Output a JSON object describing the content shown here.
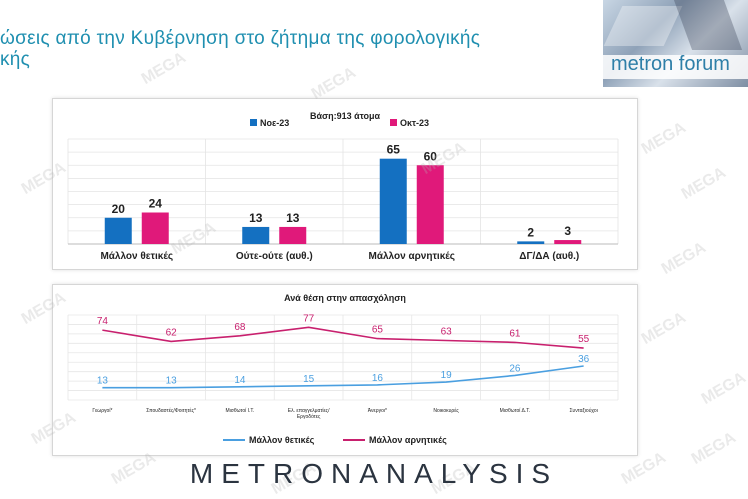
{
  "header": {
    "title_line1": "ώσεις από την Κυβέρνηση στο ζήτημα της φορολογικής",
    "title_line2": "κής"
  },
  "logo": {
    "text": "metron forum"
  },
  "footer": {
    "brand": "METRONANALYSIS"
  },
  "watermark": {
    "text": "MEGA"
  },
  "colors": {
    "nov": "#1470c1",
    "oct": "#e0197a",
    "blue_line": "#4a9fe0",
    "pink_line": "#c8206e"
  },
  "chart_data": [
    {
      "type": "bar",
      "title": "Βάση:913 άτομα",
      "categories": [
        "Μάλλον θετικές",
        "Ούτε-ούτε (αυθ.)",
        "Μάλλον αρνητικές",
        "ΔΓ/ΔΑ (αυθ.)"
      ],
      "series": [
        {
          "name": "Νοε-23",
          "values": [
            20,
            13,
            65,
            2
          ]
        },
        {
          "name": "Οκτ-23",
          "values": [
            24,
            13,
            60,
            3
          ]
        }
      ],
      "ylim": [
        0,
        80
      ],
      "legend": "top",
      "grid": true
    },
    {
      "type": "line",
      "title": "Ανά θέση στην απασχόληση",
      "categories": [
        "Γεωργοί*",
        "Σπουδαστές/Φοιτητές*",
        "Μισθωτοί Ι.Τ.",
        "Ελ. επαγγελματίες/ Εργοδότες",
        "Άνεργοι*",
        "Νοικοκυρές",
        "Μισθωτοί Δ.Τ.",
        "Συνταξιούχοι"
      ],
      "series": [
        {
          "name": "Μάλλον θετικές",
          "values": [
            13,
            13,
            14,
            15,
            16,
            19,
            26,
            36
          ]
        },
        {
          "name": "Μάλλον αρνητικές",
          "values": [
            74,
            62,
            68,
            77,
            65,
            63,
            61,
            55
          ]
        }
      ],
      "ylim": [
        0,
        90
      ],
      "legend": "bottom",
      "grid": true
    }
  ]
}
